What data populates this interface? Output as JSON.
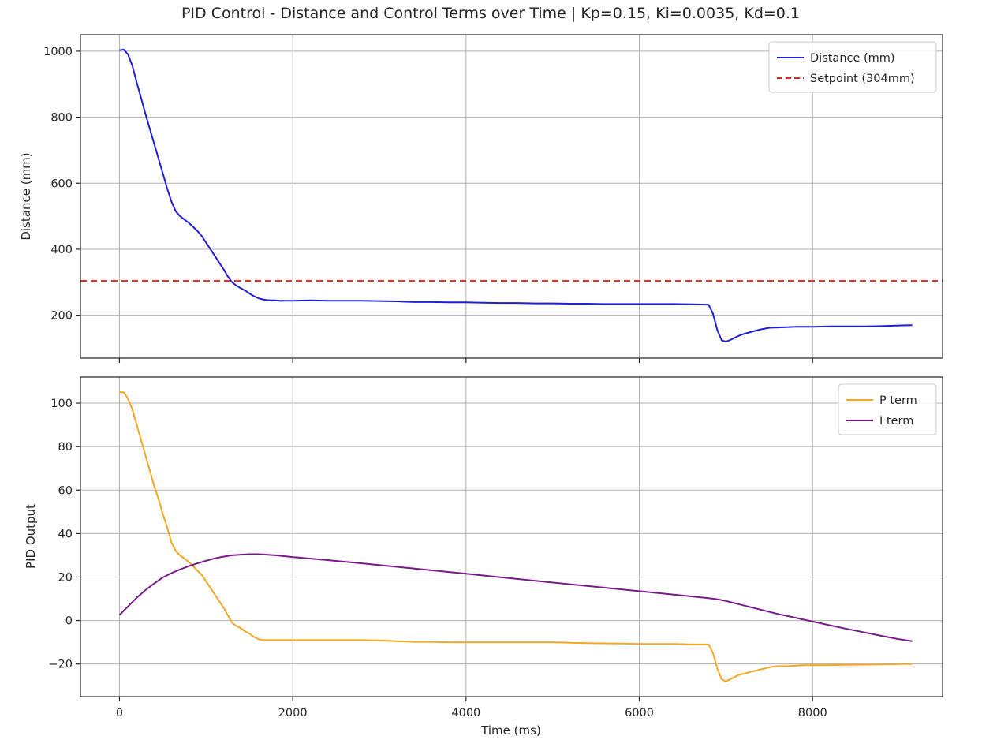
{
  "figure": {
    "title": "PID Control - Distance and Control Terms over Time | Kp=0.15, Ki=0.0035, Kd=0.1"
  },
  "chart_data": [
    {
      "type": "line",
      "panel": "top",
      "xlabel": "",
      "ylabel": "Distance (mm)",
      "xlim": [
        -450,
        9500
      ],
      "ylim": [
        70,
        1050
      ],
      "xticks": [
        0,
        2000,
        4000,
        6000,
        8000
      ],
      "xtick_labels_visible": false,
      "yticks": [
        200,
        400,
        600,
        800,
        1000
      ],
      "grid": true,
      "legend": "top-right",
      "series": [
        {
          "name": "Distance (mm)",
          "color": "#1f1fd6",
          "style": "solid",
          "x": [
            0,
            50,
            100,
            150,
            200,
            250,
            300,
            350,
            400,
            450,
            500,
            550,
            600,
            650,
            700,
            750,
            800,
            850,
            900,
            950,
            1000,
            1050,
            1100,
            1150,
            1200,
            1250,
            1300,
            1350,
            1400,
            1450,
            1500,
            1550,
            1600,
            1650,
            1700,
            1750,
            1800,
            1850,
            1900,
            1950,
            2000,
            2200,
            2400,
            2600,
            2800,
            3000,
            3200,
            3400,
            3600,
            3800,
            4000,
            4200,
            4400,
            4600,
            4800,
            5000,
            5200,
            5400,
            5600,
            5800,
            6000,
            6200,
            6400,
            6600,
            6800,
            6850,
            6900,
            6950,
            7000,
            7050,
            7100,
            7150,
            7200,
            7300,
            7400,
            7500,
            7600,
            7700,
            7800,
            7900,
            8000,
            8200,
            8400,
            8600,
            8800,
            9000,
            9150
          ],
          "y": [
            1003,
            1005,
            990,
            955,
            905,
            858,
            810,
            765,
            720,
            675,
            630,
            585,
            545,
            515,
            500,
            490,
            480,
            468,
            455,
            440,
            420,
            400,
            380,
            360,
            340,
            318,
            300,
            290,
            282,
            275,
            266,
            258,
            252,
            248,
            246,
            245,
            245,
            244,
            244,
            244,
            244,
            245,
            244,
            244,
            244,
            243,
            242,
            240,
            240,
            239,
            239,
            238,
            237,
            237,
            236,
            236,
            235,
            235,
            234,
            234,
            234,
            234,
            234,
            233,
            232,
            205,
            155,
            124,
            120,
            125,
            132,
            138,
            143,
            150,
            157,
            162,
            163,
            164,
            165,
            165,
            165,
            166,
            166,
            166,
            167,
            169,
            170
          ]
        },
        {
          "name": "Setpoint (304mm)",
          "color": "#e8221c",
          "style": "dashed",
          "y_constant": 304
        }
      ]
    },
    {
      "type": "line",
      "panel": "bottom",
      "xlabel": "Time (ms)",
      "ylabel": "PID Output",
      "xlim": [
        -450,
        9500
      ],
      "ylim": [
        -35,
        112
      ],
      "xticks": [
        0,
        2000,
        4000,
        6000,
        8000
      ],
      "yticks": [
        -20,
        0,
        20,
        40,
        60,
        80,
        100
      ],
      "grid": true,
      "legend": "top-right",
      "series": [
        {
          "name": "P term",
          "color": "#f5a623",
          "style": "solid",
          "x": [
            0,
            50,
            100,
            150,
            200,
            250,
            300,
            350,
            400,
            450,
            500,
            550,
            600,
            650,
            700,
            750,
            800,
            850,
            900,
            950,
            1000,
            1050,
            1100,
            1150,
            1200,
            1250,
            1300,
            1350,
            1400,
            1450,
            1500,
            1550,
            1600,
            1650,
            1700,
            1750,
            1800,
            1850,
            1900,
            1950,
            2000,
            2200,
            2400,
            2600,
            2800,
            3000,
            3200,
            3400,
            3600,
            3800,
            4000,
            4200,
            4400,
            4600,
            4800,
            5000,
            5200,
            5400,
            5600,
            5800,
            6000,
            6200,
            6400,
            6600,
            6800,
            6850,
            6900,
            6950,
            7000,
            7050,
            7100,
            7150,
            7200,
            7300,
            7400,
            7500,
            7600,
            7700,
            7800,
            7900,
            8000,
            8200,
            8400,
            8600,
            8800,
            9000,
            9150
          ],
          "y": [
            105,
            105,
            102,
            97,
            90,
            83,
            76,
            69,
            62,
            56,
            49,
            43,
            36,
            32,
            30,
            28.5,
            27,
            25,
            23,
            21,
            18,
            15,
            12,
            9,
            6,
            2.5,
            -1,
            -2.5,
            -3.5,
            -5,
            -6,
            -7.5,
            -8.5,
            -9,
            -9,
            -9,
            -9,
            -9,
            -9,
            -9,
            -9,
            -9,
            -9,
            -9,
            -9,
            -9.2,
            -9.5,
            -9.8,
            -9.8,
            -10,
            -10,
            -10,
            -10,
            -10,
            -10,
            -10,
            -10.2,
            -10.4,
            -10.5,
            -10.6,
            -10.8,
            -10.8,
            -10.8,
            -11,
            -11,
            -15,
            -22,
            -27,
            -28,
            -27,
            -26,
            -25,
            -24.5,
            -23.5,
            -22.5,
            -21.5,
            -21,
            -21,
            -20.8,
            -20.6,
            -20.6,
            -20.5,
            -20.4,
            -20.3,
            -20.2,
            -20,
            -20
          ]
        },
        {
          "name": "I term",
          "color": "#7a1a8a",
          "style": "solid",
          "x": [
            0,
            100,
            200,
            300,
            400,
            500,
            600,
            700,
            800,
            900,
            1000,
            1100,
            1200,
            1300,
            1400,
            1500,
            1600,
            1700,
            1800,
            1900,
            2000,
            2400,
            2800,
            3200,
            3600,
            4000,
            4400,
            4800,
            5200,
            5600,
            6000,
            6400,
            6800,
            6900,
            7000,
            7200,
            7400,
            7600,
            7800,
            8000,
            8200,
            8400,
            8600,
            8800,
            9000,
            9150
          ],
          "y": [
            2.5,
            6.5,
            10.5,
            14,
            17,
            19.8,
            21.8,
            23.5,
            25,
            26.3,
            27.5,
            28.6,
            29.4,
            30,
            30.3,
            30.5,
            30.5,
            30.3,
            30,
            29.6,
            29.2,
            27.8,
            26.3,
            24.7,
            23.1,
            21.5,
            19.9,
            18.3,
            16.7,
            15.1,
            13.5,
            11.9,
            10.3,
            9.8,
            9,
            7,
            5,
            3,
            1.3,
            -0.5,
            -2.2,
            -3.9,
            -5.5,
            -7.1,
            -8.6,
            -9.5
          ]
        }
      ]
    }
  ]
}
